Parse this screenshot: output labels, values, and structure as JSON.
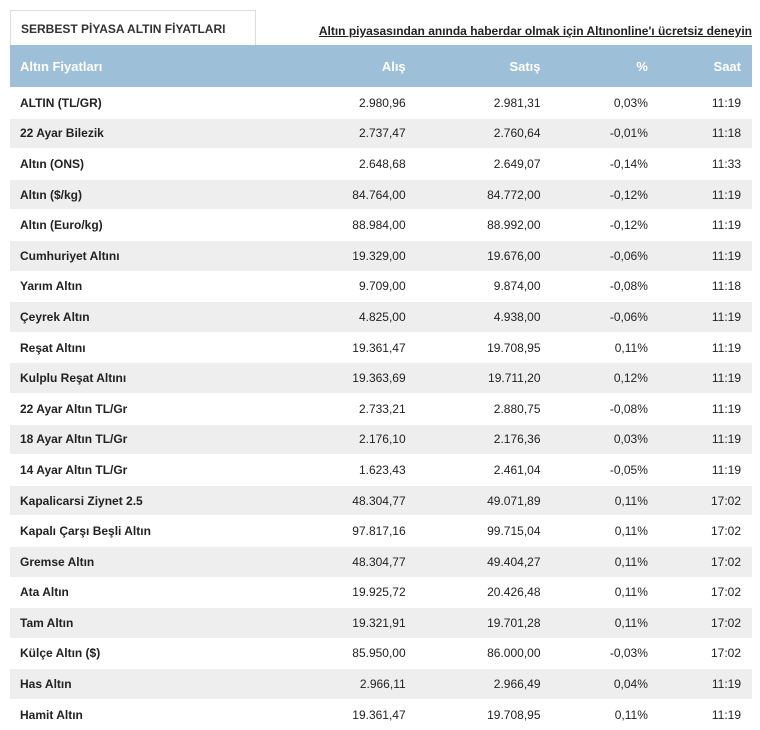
{
  "header": {
    "tab": "SERBEST PİYASA ALTIN FİYATLARI",
    "link": "Altın piyasasından anında haberdar olmak için Altınonline'ı ücretsiz deneyin"
  },
  "table": {
    "headers": [
      "Altın Fiyatları",
      "Alış",
      "Satış",
      "%",
      "Saat"
    ],
    "rows": [
      [
        "ALTIN (TL/GR)",
        "2.980,96",
        "2.981,31",
        "0,03%",
        "11:19"
      ],
      [
        "22 Ayar Bilezik",
        "2.737,47",
        "2.760,64",
        "-0,01%",
        "11:18"
      ],
      [
        "Altın (ONS)",
        "2.648,68",
        "2.649,07",
        "-0,14%",
        "11:33"
      ],
      [
        "Altın ($/kg)",
        "84.764,00",
        "84.772,00",
        "-0,12%",
        "11:19"
      ],
      [
        "Altın (Euro/kg)",
        "88.984,00",
        "88.992,00",
        "-0,12%",
        "11:19"
      ],
      [
        "Cumhuriyet Altını",
        "19.329,00",
        "19.676,00",
        "-0,06%",
        "11:19"
      ],
      [
        "Yarım Altın",
        "9.709,00",
        "9.874,00",
        "-0,08%",
        "11:18"
      ],
      [
        "Çeyrek Altın",
        "4.825,00",
        "4.938,00",
        "-0,06%",
        "11:19"
      ],
      [
        "Reşat Altını",
        "19.361,47",
        "19.708,95",
        "0,11%",
        "11:19"
      ],
      [
        "Kulplu Reşat Altını",
        "19.363,69",
        "19.711,20",
        "0,12%",
        "11:19"
      ],
      [
        "22 Ayar Altın TL/Gr",
        "2.733,21",
        "2.880,75",
        "-0,08%",
        "11:19"
      ],
      [
        "18 Ayar Altın TL/Gr",
        "2.176,10",
        "2.176,36",
        "0,03%",
        "11:19"
      ],
      [
        "14 Ayar Altın TL/Gr",
        "1.623,43",
        "2.461,04",
        "-0,05%",
        "11:19"
      ],
      [
        "Kapalicarsi Ziynet 2.5",
        "48.304,77",
        "49.071,89",
        "0,11%",
        "17:02"
      ],
      [
        "Kapalı Çarşı Beşli Altın",
        "97.817,16",
        "99.715,04",
        "0,11%",
        "17:02"
      ],
      [
        "Gremse Altın",
        "48.304,77",
        "49.404,27",
        "0,11%",
        "17:02"
      ],
      [
        "Ata Altın",
        "19.925,72",
        "20.426,48",
        "0,11%",
        "17:02"
      ],
      [
        "Tam Altın",
        "19.321,91",
        "19.701,28",
        "0,11%",
        "17:02"
      ],
      [
        "Külçe Altın ($)",
        "85.950,00",
        "86.000,00",
        "-0,03%",
        "17:02"
      ],
      [
        "Has Altın",
        "2.966,11",
        "2.966,49",
        "0,04%",
        "11:19"
      ],
      [
        "Hamit Altın",
        "19.361,47",
        "19.708,95",
        "0,11%",
        "11:19"
      ]
    ]
  }
}
